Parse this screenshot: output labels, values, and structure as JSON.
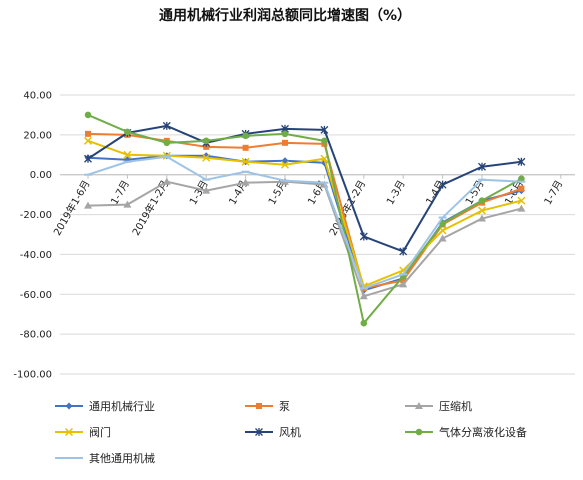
{
  "chart_data": {
    "type": "line",
    "title": "通用机械行业利润总额同比增速图（%）",
    "xlabel": "",
    "ylabel": "",
    "ylim": [
      -100,
      40
    ],
    "yticks": [
      40,
      20,
      0,
      -20,
      -40,
      -60,
      -80,
      -100
    ],
    "ytick_labels": [
      "40.00",
      "20.00",
      "0.00",
      "-20.00",
      "-40.00",
      "-60.00",
      "-80.00",
      "-100.00"
    ],
    "categories": [
      "2019年1-6月",
      "1-7月",
      "2019年1-2月",
      "1-3月",
      "1-4月",
      "1-5月",
      "1-6月",
      "2020年1-2月",
      "1-3月",
      "1-4月",
      "1-5月",
      "1-6月",
      "1-7月"
    ],
    "grid": true,
    "legend_position": "bottom",
    "series": [
      {
        "name": "通用机械行业",
        "color": "#4472C4",
        "marker": "diamond",
        "values": [
          8.5,
          7.5,
          9.5,
          9.5,
          6.5,
          7.0,
          6.0,
          -58.0,
          -52.0,
          -24.0,
          -13.0,
          -8.0,
          null
        ]
      },
      {
        "name": "泵",
        "color": "#ED7D31",
        "marker": "square",
        "values": [
          20.5,
          20.0,
          17.0,
          14.0,
          13.5,
          16.0,
          15.5,
          -57.0,
          -53.0,
          -25.0,
          -14.0,
          -7.0,
          null
        ]
      },
      {
        "name": "压缩机",
        "color": "#A5A5A5",
        "marker": "triangle",
        "values": [
          -15.5,
          -15.0,
          -3.5,
          -8.0,
          -4.0,
          -3.5,
          -5.0,
          -61.0,
          -55.0,
          -32.0,
          -22.0,
          -17.0,
          null
        ]
      },
      {
        "name": "阀门",
        "color": "#E5C100",
        "marker": "x",
        "values": [
          17.0,
          10.0,
          9.5,
          8.5,
          6.5,
          5.0,
          8.0,
          -56.0,
          -48.0,
          -28.0,
          -18.0,
          -13.0,
          null
        ]
      },
      {
        "name": "风机",
        "color": "#264478",
        "marker": "star",
        "values": [
          8.0,
          21.0,
          24.5,
          16.0,
          20.5,
          23.0,
          22.5,
          -31.0,
          -38.5,
          -5.0,
          4.0,
          6.5,
          null
        ]
      },
      {
        "name": "气体分离液化设备",
        "color": "#70AD47",
        "marker": "circle",
        "values": [
          30.0,
          21.5,
          16.0,
          17.0,
          19.5,
          20.5,
          17.0,
          -74.5,
          -51.0,
          -24.5,
          -13.0,
          -2.0,
          null
        ]
      },
      {
        "name": "其他通用机械",
        "color": "#9DC3E6",
        "marker": "dash",
        "values": [
          0.0,
          6.5,
          9.0,
          -2.5,
          1.5,
          -3.0,
          -4.0,
          -57.0,
          -50.0,
          -21.5,
          -2.5,
          -3.5,
          null
        ]
      }
    ]
  }
}
